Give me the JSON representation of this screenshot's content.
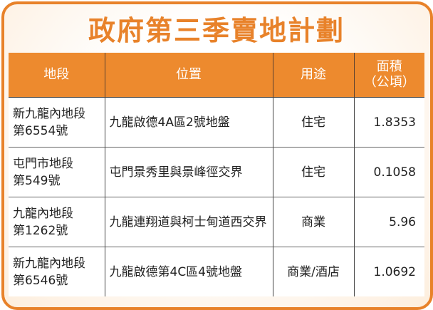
{
  "title": "政府第三季賣地計劃",
  "table": {
    "headers": [
      "地段",
      "位置",
      "用途",
      "面積",
      "（公頃）"
    ],
    "rows": [
      {
        "lot_line1": "新九龍內地段",
        "lot_line2": "第6554號",
        "location": "九龍啟德4A區2號地盤",
        "use": "住宅",
        "area": "1.8353"
      },
      {
        "lot_line1": "屯門市地段",
        "lot_line2": "第549號",
        "location": "屯門景秀里與景峰徑交界",
        "use": "住宅",
        "area": "0.1058"
      },
      {
        "lot_line1": "九龍內地段",
        "lot_line2": "第1262號",
        "location": "九龍連翔道與柯士甸道西交界",
        "use": "商業",
        "area": "5.96"
      },
      {
        "lot_line1": "新九龍內地段",
        "lot_line2": "第6546號",
        "location": "九龍啟德第4C區4號地盤",
        "use": "商業/酒店",
        "area": "1.0692"
      }
    ]
  },
  "colors": {
    "accent": "#e8822a",
    "header_bg": "#ed8a2e"
  }
}
